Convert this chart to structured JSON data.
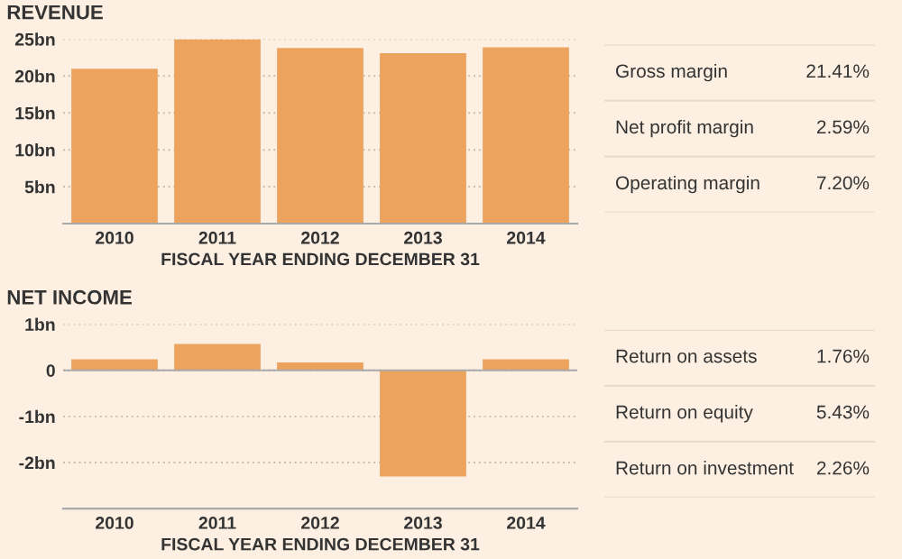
{
  "chart_data": [
    {
      "type": "bar",
      "title": "REVENUE",
      "xlabel": "FISCAL YEAR ENDING DECEMBER 31",
      "categories": [
        "2010",
        "2011",
        "2012",
        "2013",
        "2014"
      ],
      "values": [
        21.0,
        25.0,
        23.8,
        23.1,
        23.9
      ],
      "color": "#eba35e",
      "ylim": [
        0,
        25
      ],
      "yticks": [
        {
          "value": 5,
          "label": "5bn"
        },
        {
          "value": 10,
          "label": "10bn"
        },
        {
          "value": 15,
          "label": "15bn"
        },
        {
          "value": 20,
          "label": "20bn"
        },
        {
          "value": 25,
          "label": "25bn"
        }
      ],
      "grid": "y"
    },
    {
      "type": "other",
      "categories": [
        "Gross margin",
        "Net profit margin",
        "Operating margin"
      ],
      "values": [
        21.41,
        2.59,
        7.2
      ],
      "value_labels": [
        "21.41%",
        "2.59%",
        "7.20%"
      ]
    },
    {
      "type": "bar",
      "title": "NET INCOME",
      "xlabel": "FISCAL YEAR ENDING DECEMBER 31",
      "categories": [
        "2010",
        "2011",
        "2012",
        "2013",
        "2014"
      ],
      "values": [
        0.24,
        0.57,
        0.17,
        -2.3,
        0.24
      ],
      "color": "#eba35e",
      "ylim": [
        -3,
        1
      ],
      "yticks": [
        {
          "value": -2,
          "label": "-2bn"
        },
        {
          "value": -1,
          "label": "-1bn"
        },
        0,
        {
          "value": 1,
          "label": "1bn"
        }
      ],
      "grid": "y"
    },
    {
      "type": "other",
      "categories": [
        "Return on assets",
        "Return on equity",
        "Return on investment"
      ],
      "values": [
        1.76,
        5.43,
        2.26
      ],
      "value_labels": [
        "1.76%",
        "5.43%",
        "2.26%"
      ]
    }
  ]
}
